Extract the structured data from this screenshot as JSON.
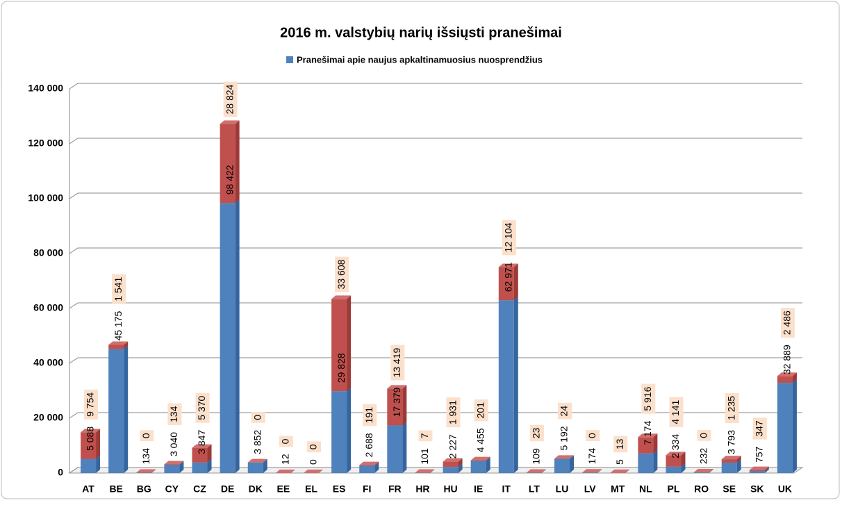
{
  "chart_data": {
    "type": "bar",
    "stacked": true,
    "title": "2016 m. valstybių narių išsiųsti pranešimai",
    "categories": [
      "AT",
      "BE",
      "BG",
      "CY",
      "CZ",
      "DE",
      "DK",
      "EE",
      "EL",
      "ES",
      "FI",
      "FR",
      "HR",
      "HU",
      "IE",
      "IT",
      "LT",
      "LU",
      "LV",
      "MT",
      "NL",
      "PL",
      "RO",
      "SE",
      "SK",
      "UK"
    ],
    "series": [
      {
        "name": "Pranešimai apie naujus apkaltinamuosius nuosprendžius",
        "color": "#4f81bd",
        "values": [
          5088,
          45175,
          134,
          3040,
          3847,
          98422,
          3852,
          12,
          0,
          29828,
          2688,
          17379,
          101,
          2227,
          4455,
          62971,
          109,
          5192,
          174,
          5,
          7174,
          2334,
          232,
          3793,
          757,
          32889
        ],
        "value_labels": [
          "5 088",
          "45 175",
          "134",
          "3 040",
          "3 847",
          "98 422",
          "3 852",
          "12",
          "0",
          "29 828",
          "2 688",
          "17 379",
          "101",
          "2 227",
          "4 455",
          "62 971",
          "109",
          "5 192",
          "174",
          "5",
          "7 174",
          "2 334",
          "232",
          "3 793",
          "757",
          "32 889"
        ]
      },
      {
        "color": "#c0504d",
        "values": [
          9754,
          1541,
          0,
          134,
          5370,
          28824,
          0,
          0,
          0,
          33608,
          191,
          13419,
          7,
          1931,
          201,
          12104,
          23,
          24,
          0,
          13,
          5916,
          4141,
          0,
          1235,
          347,
          2486
        ],
        "value_labels": [
          "9 754",
          "1 541",
          "0",
          "134",
          "5 370",
          "28 824",
          "0",
          "0",
          "0",
          "33 608",
          "191",
          "13 419",
          "7",
          "1 931",
          "201",
          "12 104",
          "23",
          "24",
          "0",
          "13",
          "5 916",
          "4 141",
          "0",
          "1 235",
          "347",
          "2 486"
        ]
      }
    ],
    "ylim": [
      0,
      140000
    ],
    "yticks": [
      0,
      {
        "value": 20000,
        "label": "20 000"
      },
      {
        "value": 40000,
        "label": "40 000"
      },
      {
        "value": 60000,
        "label": "60 000"
      },
      {
        "value": 80000,
        "label": "80 000"
      },
      {
        "value": 100000,
        "label": "100 000"
      },
      {
        "value": 120000,
        "label": "120 000"
      },
      {
        "value": 140000,
        "label": "140 000"
      }
    ],
    "grid": true,
    "legend": "top"
  }
}
